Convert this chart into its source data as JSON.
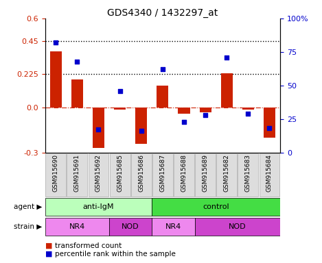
{
  "title": "GDS4340 / 1432297_at",
  "samples": [
    "GSM915690",
    "GSM915691",
    "GSM915692",
    "GSM915685",
    "GSM915686",
    "GSM915687",
    "GSM915688",
    "GSM915689",
    "GSM915682",
    "GSM915683",
    "GSM915684"
  ],
  "transformed_count": [
    0.38,
    0.19,
    -0.27,
    -0.01,
    -0.24,
    0.15,
    -0.04,
    -0.03,
    0.23,
    -0.01,
    -0.2
  ],
  "percentile_rank": [
    82,
    68,
    17,
    46,
    16,
    62,
    23,
    28,
    71,
    29,
    18
  ],
  "ylim_left": [
    -0.3,
    0.6
  ],
  "ylim_right": [
    0,
    100
  ],
  "yticks_left": [
    -0.3,
    0.0,
    0.225,
    0.45,
    0.6
  ],
  "yticks_right": [
    0,
    25,
    50,
    75,
    100
  ],
  "hline1": 0.45,
  "hline2": 0.225,
  "bar_color": "#cc2200",
  "dot_color": "#0000cc",
  "agent_groups": [
    {
      "label": "anti-IgM",
      "start": 0,
      "end": 5,
      "color": "#bbffbb"
    },
    {
      "label": "control",
      "start": 5,
      "end": 11,
      "color": "#44dd44"
    }
  ],
  "strain_groups": [
    {
      "label": "NR4",
      "start": 0,
      "end": 3,
      "color": "#ee88ee"
    },
    {
      "label": "NOD",
      "start": 3,
      "end": 5,
      "color": "#cc44cc"
    },
    {
      "label": "NR4",
      "start": 5,
      "end": 7,
      "color": "#ee88ee"
    },
    {
      "label": "NOD",
      "start": 7,
      "end": 11,
      "color": "#cc44cc"
    }
  ],
  "legend_bar_color": "#cc2200",
  "legend_dot_color": "#0000cc",
  "bg_color": "#ffffff",
  "tick_color_left": "#cc2200",
  "tick_color_right": "#0000cc",
  "label_box_color": "#dddddd",
  "label_box_edge": "#aaaaaa"
}
